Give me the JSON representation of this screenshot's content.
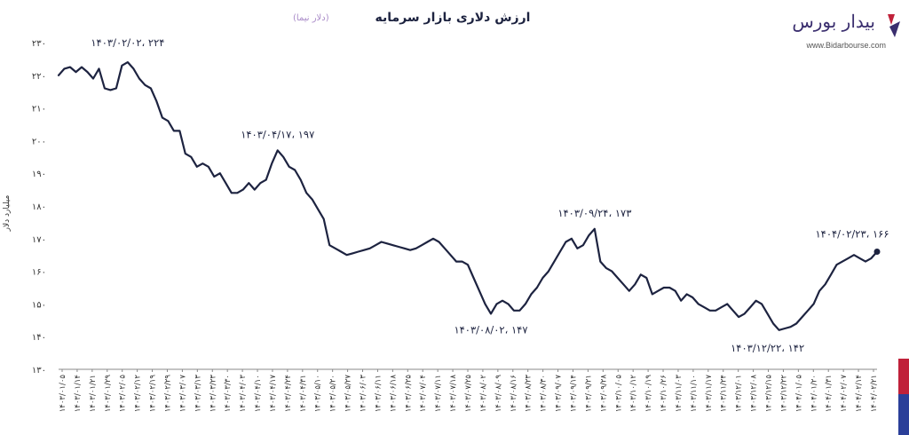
{
  "header": {
    "title": "ارزش دلاری بازار سرمایه",
    "subtitle": "(دلار نیما)"
  },
  "brand": {
    "name": "بیدار بورس",
    "url": "www.Bidarbourse.com",
    "colors": {
      "primary": "#3a2e6e",
      "accent": "#c0213a"
    }
  },
  "chart_data": {
    "type": "line",
    "title": "ارزش دلاری بازار سرمایه",
    "subtitle": "(دلار نیما)",
    "xlabel": "",
    "ylabel": "میلیارد دلار",
    "ylim": [
      130,
      230
    ],
    "yticks": [
      130,
      140,
      150,
      160,
      170,
      180,
      190,
      200,
      210,
      220,
      230
    ],
    "ytick_labels": [
      "۱۳۰",
      "۱۴۰",
      "۱۵۰",
      "۱۶۰",
      "۱۷۰",
      "۱۸۰",
      "۱۹۰",
      "۲۰۰",
      "۲۱۰",
      "۲۲۰",
      "۲۳۰"
    ],
    "grid": false,
    "line_color": "#1d2340",
    "x_tick_labels": [
      "۱۴۰۳/۰۱/۰۵",
      "۱۴۰۳/۰۱/۱۴",
      "۱۴۰۳/۰۱/۲۱",
      "۱۴۰۳/۰۱/۲۹",
      "۱۴۰۳/۰۲/۰۵",
      "۱۴۰۳/۰۲/۱۲",
      "۱۴۰۳/۰۲/۱۹",
      "۱۴۰۳/۰۲/۲۹",
      "۱۴۰۳/۰۳/۰۷",
      "۱۴۰۳/۰۳/۱۳",
      "۱۴۰۳/۰۳/۲۳",
      "۱۴۰۳/۰۳/۳۰",
      "۱۴۰۳/۰۴/۰۳",
      "۱۴۰۳/۰۴/۱۰",
      "۱۴۰۳/۰۴/۱۷",
      "۱۴۰۳/۰۴/۲۴",
      "۱۴۰۳/۰۴/۳۱",
      "۱۴۰۳/۰۵/۱۰",
      "۱۴۰۳/۰۵/۲۰",
      "۱۴۰۳/۰۵/۲۷",
      "۱۴۰۳/۰۶/۰۳",
      "۱۴۰۳/۰۶/۱۱",
      "۱۴۰۳/۰۶/۱۸",
      "۱۴۰۳/۰۶/۲۵",
      "۱۴۰۳/۰۷/۰۴",
      "۱۴۰۳/۰۷/۱۱",
      "۱۴۰۳/۰۷/۱۸",
      "۱۴۰۳/۰۷/۲۵",
      "۱۴۰۳/۰۸/۰۲",
      "۱۴۰۳/۰۸/۰۹",
      "۱۴۰۳/۰۸/۱۶",
      "۱۴۰۳/۰۸/۲۳",
      "۱۴۰۳/۰۸/۳۰",
      "۱۴۰۳/۰۹/۰۷",
      "۱۴۰۳/۰۹/۱۴",
      "۱۴۰۳/۰۹/۲۱",
      "۱۴۰۳/۰۹/۲۸",
      "۱۴۰۳/۱۰/۰۵",
      "۱۴۰۳/۱۰/۱۲",
      "۱۴۰۳/۱۰/۱۹",
      "۱۴۰۳/۱۰/۲۶",
      "۱۴۰۳/۱۱/۰۳",
      "۱۴۰۳/۱۱/۱۰",
      "۱۴۰۳/۱۱/۱۷",
      "۱۴۰۳/۱۱/۲۴",
      "۱۴۰۳/۱۲/۰۱",
      "۱۴۰۳/۱۲/۰۸",
      "۱۴۰۳/۱۲/۱۵",
      "۱۴۰۳/۱۲/۲۲",
      "۱۴۰۴/۰۱/۰۵",
      "۱۴۰۴/۰۱/۲۰",
      "۱۴۰۴/۰۱/۳۱",
      "۱۴۰۴/۰۲/۰۷",
      "۱۴۰۴/۰۲/۱۴",
      "۱۴۰۴/۰۲/۲۱"
    ],
    "values": [
      220,
      222,
      222.5,
      221,
      222.5,
      221,
      219,
      222,
      216,
      215.5,
      216,
      223,
      224,
      222,
      219,
      217,
      216,
      212,
      207,
      206,
      203,
      203,
      196,
      195,
      192,
      193,
      192,
      189,
      190,
      187,
      184,
      184,
      185,
      187,
      185,
      187,
      188,
      193,
      197,
      195,
      192,
      191,
      188,
      184,
      182,
      179,
      176,
      168,
      167,
      166,
      165,
      165.5,
      166,
      166.5,
      167,
      168,
      169,
      168.5,
      168,
      167.5,
      167,
      166.5,
      167,
      168,
      169,
      170,
      169,
      167,
      165,
      163,
      163,
      162,
      158,
      154,
      150,
      147,
      150,
      151,
      150,
      148,
      148,
      150,
      153,
      155,
      158,
      160,
      163,
      166,
      169,
      170,
      167,
      168,
      171,
      173,
      163,
      161,
      160,
      158,
      156,
      154,
      156,
      159,
      158,
      153,
      154,
      155,
      155,
      154,
      151,
      153,
      152,
      150,
      149,
      148,
      148,
      149,
      150,
      148,
      146,
      147,
      149,
      151,
      150,
      147,
      144,
      142,
      142.5,
      143,
      144,
      146,
      148,
      150,
      154,
      156,
      159,
      162,
      163,
      164,
      165,
      164,
      163,
      164,
      166
    ],
    "annotations": [
      {
        "label": "۱۴۰۳/۰۲/۰۲، ۲۲۴",
        "index": 12,
        "value": 224
      },
      {
        "label": "۱۴۰۳/۰۴/۱۷، ۱۹۷",
        "index": 38,
        "value": 197
      },
      {
        "label": "۱۴۰۳/۰۸/۰۲، ۱۴۷",
        "index": 75,
        "value": 147
      },
      {
        "label": "۱۴۰۳/۰۹/۲۴، ۱۷۳",
        "index": 93,
        "value": 173
      },
      {
        "label": "۱۴۰۳/۱۲/۲۲، ۱۴۲",
        "index": 123,
        "value": 142
      },
      {
        "label": "۱۴۰۴/۰۲/۲۳، ۱۶۶",
        "index": 141,
        "value": 166
      }
    ]
  }
}
